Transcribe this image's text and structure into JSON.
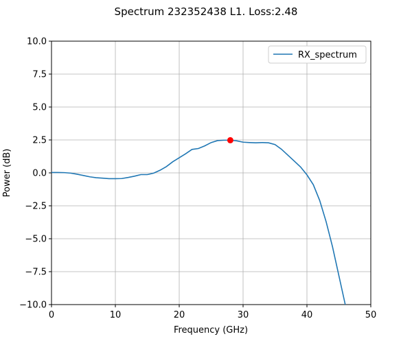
{
  "chart_data": {
    "type": "line",
    "title": "Spectrum 232352438 L1. Loss:2.48",
    "xlabel": "Frequency (GHz)",
    "ylabel": "Power (dB)",
    "xlim": [
      0,
      50
    ],
    "ylim": [
      -10,
      10
    ],
    "xticks": [
      0,
      10,
      20,
      30,
      40,
      50
    ],
    "yticks": [
      -10,
      -7.5,
      -5,
      -2.5,
      0,
      2.5,
      5,
      7.5,
      10
    ],
    "xtick_labels": [
      "0",
      "10",
      "20",
      "30",
      "40",
      "50"
    ],
    "ytick_labels": [
      "−10.0",
      "−7.5",
      "−5.0",
      "−2.5",
      "0.0",
      "2.5",
      "5.0",
      "7.5",
      "10.0"
    ],
    "grid": true,
    "legend_position": "top-right",
    "series": [
      {
        "name": "RX_spectrum",
        "color": "#1f77b4",
        "x": [
          0,
          1,
          2,
          3,
          4,
          5,
          6,
          7,
          8,
          9,
          10,
          11,
          12,
          13,
          14,
          15,
          16,
          17,
          18,
          19,
          20,
          21,
          22,
          23,
          24,
          25,
          26,
          27,
          28,
          29,
          30,
          31,
          32,
          33,
          34,
          35,
          36,
          37,
          38,
          39,
          40,
          41,
          42,
          43,
          44,
          45,
          46
        ],
        "y": [
          0.03,
          0.03,
          0.02,
          -0.02,
          -0.1,
          -0.2,
          -0.3,
          -0.37,
          -0.4,
          -0.44,
          -0.44,
          -0.43,
          -0.35,
          -0.25,
          -0.13,
          -0.13,
          -0.02,
          0.2,
          0.48,
          0.85,
          1.15,
          1.45,
          1.78,
          1.85,
          2.05,
          2.3,
          2.45,
          2.48,
          2.48,
          2.43,
          2.33,
          2.3,
          2.28,
          2.3,
          2.28,
          2.15,
          1.8,
          1.35,
          0.9,
          0.45,
          -0.15,
          -0.9,
          -2.1,
          -3.7,
          -5.6,
          -7.8,
          -10.0
        ]
      }
    ],
    "marker": {
      "x": 28,
      "y": 2.48,
      "color": "#ff0000"
    }
  }
}
